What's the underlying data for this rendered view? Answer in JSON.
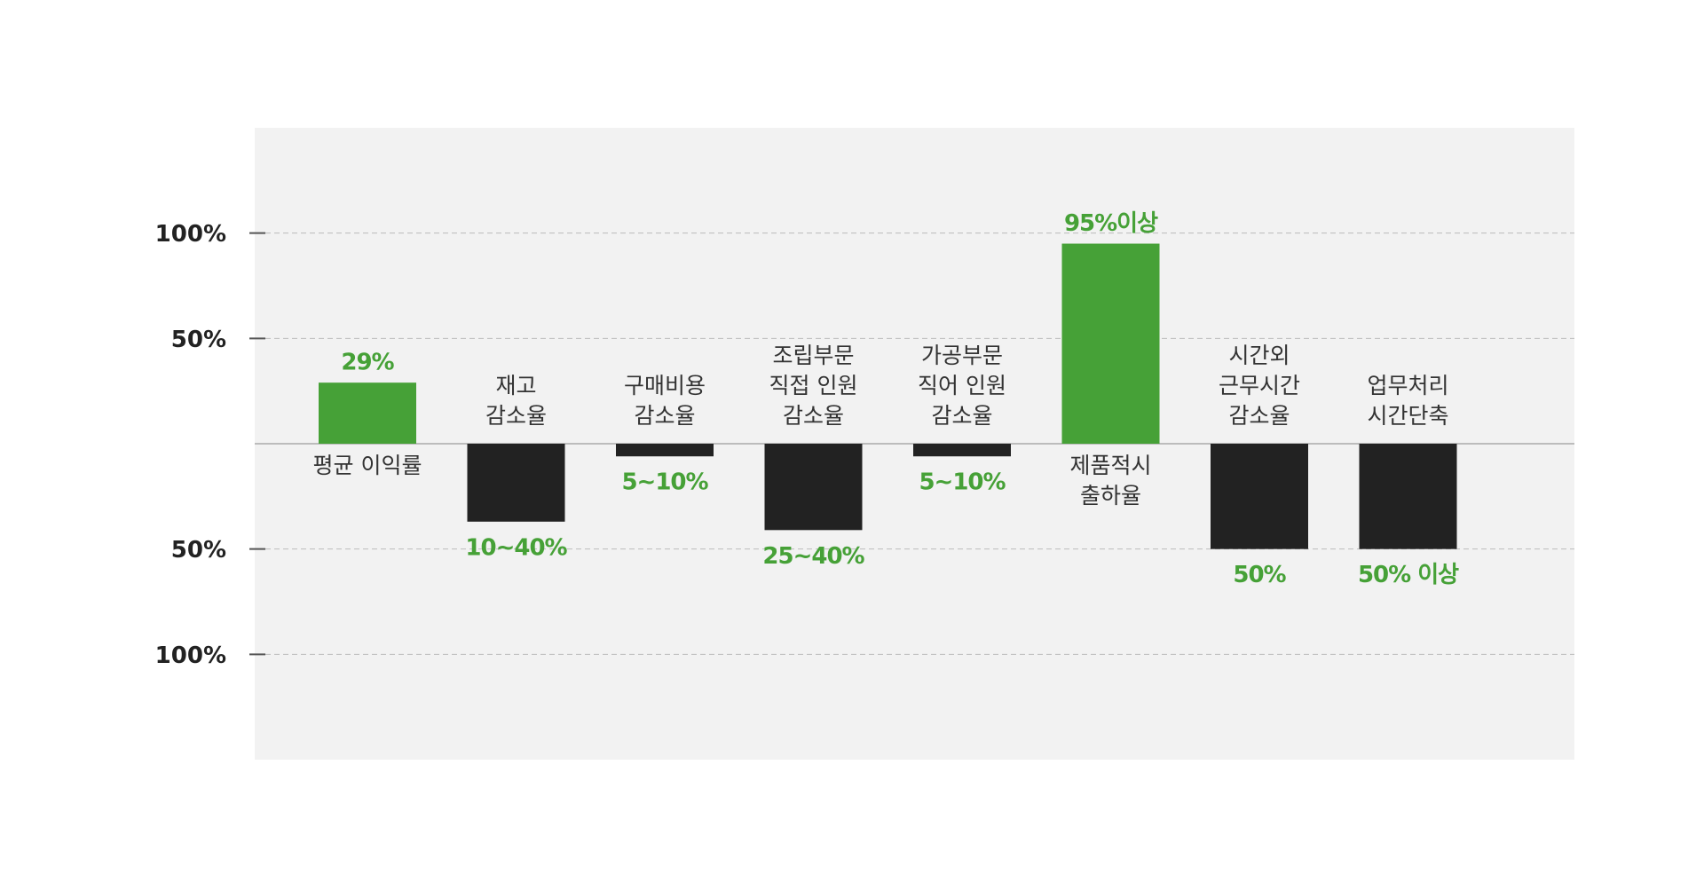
{
  "chart_data": {
    "type": "bar",
    "categories": [
      "평균 이익률",
      "재고\n감소율",
      "구매비용\n감소율",
      "조립부문\n직접 인원\n감소율",
      "가공부문\n직어 인원\n감소율",
      "제품적시\n출하율",
      "시간외\n근무시간\n감소율",
      "업무처리\n시간단축"
    ],
    "values": [
      29,
      -37,
      -6,
      -41,
      -6,
      95,
      -50,
      -50
    ],
    "value_labels": [
      "29%",
      "10~40%",
      "5~10%",
      "25~40%",
      "5~10%",
      "95%이상",
      "50%",
      "50% 이상"
    ],
    "colors": [
      "#46a137",
      "#222222",
      "#222222",
      "#222222",
      "#222222",
      "#46a137",
      "#222222",
      "#222222"
    ],
    "label_color": "#46a137",
    "ylim": [
      -150,
      150
    ],
    "yticks": [
      {
        "value": -100,
        "label": "100%"
      },
      {
        "value": -50,
        "label": "50%"
      },
      {
        "value": 50,
        "label": "50%"
      },
      {
        "value": 100,
        "label": "100%"
      }
    ],
    "grid": true
  }
}
